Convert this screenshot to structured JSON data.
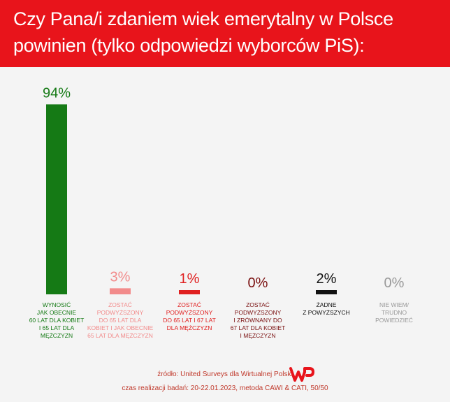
{
  "header": {
    "title_line1": "Czy Pana/i zdaniem wiek emerytalny w Polsce",
    "title_line2": "powinien (tylko odpowiedzi wyborców PiS):"
  },
  "chart_data": {
    "type": "bar",
    "ylim": [
      0,
      100
    ],
    "grid": false,
    "categories": [
      [
        "WYNOSIĆ",
        "JAK OBECNIE",
        "60 LAT DLA KOBIET",
        "I 65 LAT DLA",
        "MĘŻCZYZN"
      ],
      [
        "ZOSTAĆ",
        "PODWYŻSZONY",
        "DO 65 LAT DLA",
        "KOBIET I JAK OBECNIE",
        "65 LAT DLA MĘŻCZYZN"
      ],
      [
        "ZOSTAĆ",
        "PODWYŻSZONY",
        "DO 65 LAT I 67 LAT",
        "DLA MĘŻCZYZN"
      ],
      [
        "ZOSTAĆ",
        "PODWYŻSZONY",
        "I ZRÓWNANY DO",
        "67 LAT DLA KOBIET",
        "I MĘŻCZYZN"
      ],
      [
        "ŻADNE",
        "Z POWYŻSZYCH"
      ],
      [
        "NIE WIEM/",
        "TRUDNO",
        "POWIEDZIEĆ"
      ]
    ],
    "values": [
      94,
      3,
      1,
      0,
      2,
      0
    ],
    "value_labels": [
      "94%",
      "3%",
      "1%",
      "0%",
      "2%",
      "0%"
    ],
    "colors": [
      "#157a15",
      "#f28b8b",
      "#e02020",
      "#7a1010",
      "#111111",
      "#999999"
    ]
  },
  "footer": {
    "source": "źródło: United Surveys dla Wirtualnej Polski",
    "timing": "czas realizacji badań: 20-22.01.2023, metoda CAWI & CATI, 50/50"
  },
  "brand": {
    "logo_name": "wp-logo",
    "color": "#e8141b"
  }
}
